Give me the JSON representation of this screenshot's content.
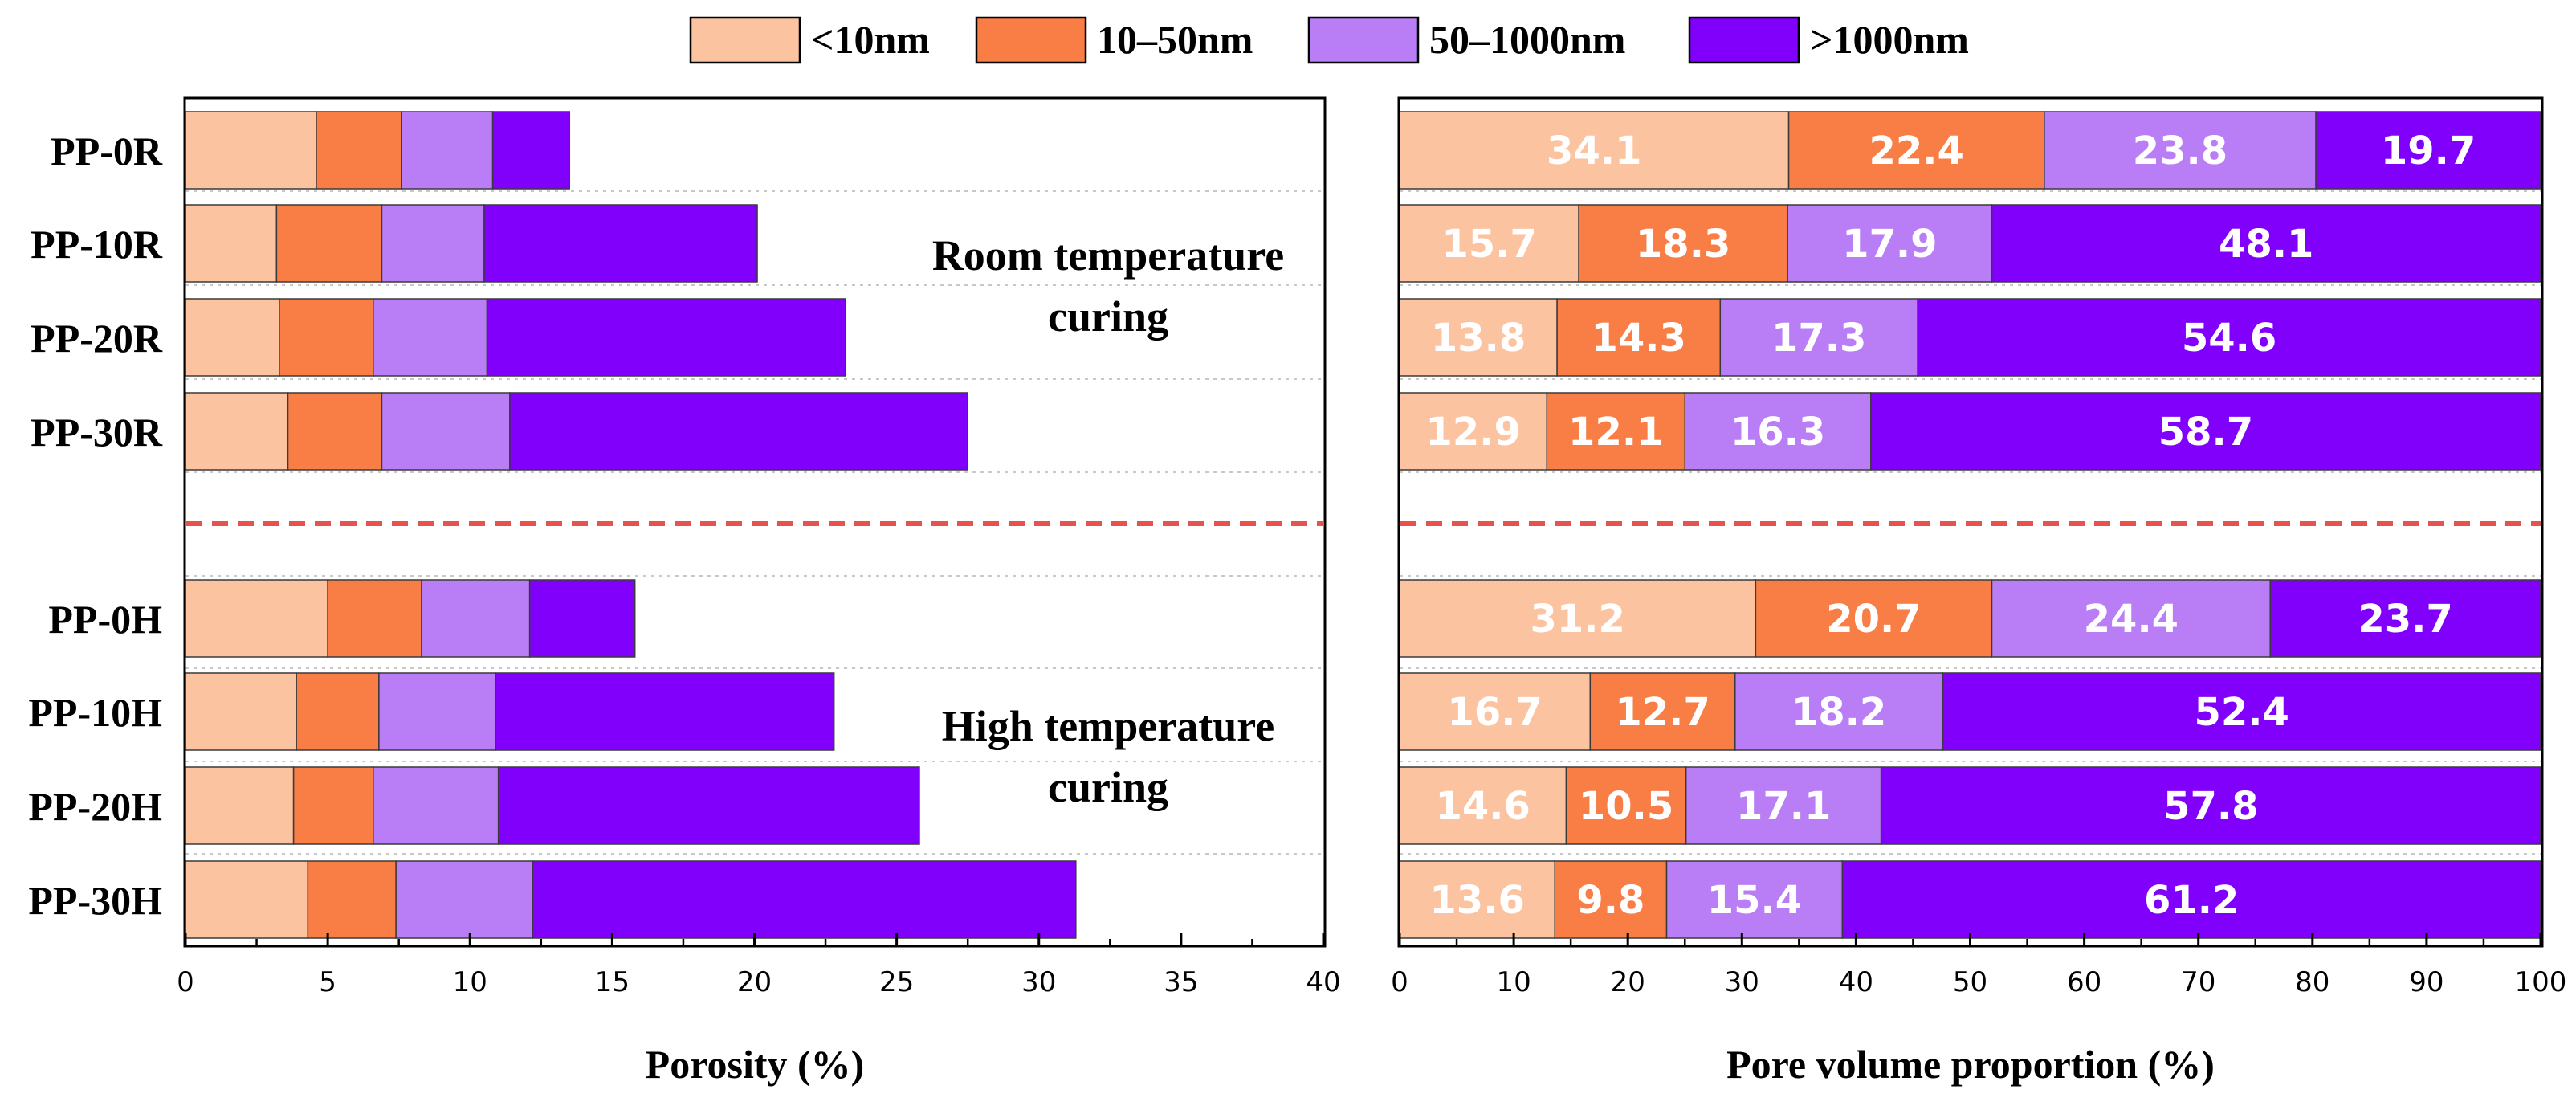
{
  "chart_data": {
    "legend": [
      "<10nm",
      "10–50nm",
      "50–1000nm",
      ">1000nm"
    ],
    "colors": [
      "#FBC3A0",
      "#F97E46",
      "#B97DF5",
      "#8000FC"
    ],
    "categories_room": [
      "PP-0R",
      "PP-10R",
      "PP-20R",
      "PP-30R"
    ],
    "categories_high": [
      "PP-0H",
      "PP-10H",
      "PP-20H",
      "PP-30H"
    ],
    "annotations": {
      "room_line1": "Room temperature",
      "room_line2": "curing",
      "high_line1": "High temperature",
      "high_line2": "curing"
    },
    "charts": [
      {
        "type": "bar",
        "orientation": "horizontal",
        "stacked": true,
        "xlabel": "Porosity (%)",
        "xlim": [
          0,
          40
        ],
        "xticks": [
          0,
          5,
          10,
          15,
          20,
          25,
          30,
          35,
          40
        ],
        "series": [
          {
            "name": "<10nm",
            "values_room": [
              4.6,
              3.2,
              3.3,
              3.6
            ],
            "values_high": [
              5.0,
              3.9,
              3.8,
              4.3
            ]
          },
          {
            "name": "10–50nm",
            "values_room": [
              3.0,
              3.7,
              3.3,
              3.3
            ],
            "values_high": [
              3.3,
              2.9,
              2.8,
              3.1
            ]
          },
          {
            "name": "50–1000nm",
            "values_room": [
              3.2,
              3.6,
              4.0,
              4.5
            ],
            "values_high": [
              3.8,
              4.1,
              4.4,
              4.8
            ]
          },
          {
            "name": ">1000nm",
            "values_room": [
              2.7,
              9.6,
              12.6,
              16.1
            ],
            "values_high": [
              3.7,
              11.9,
              14.8,
              19.1
            ]
          }
        ]
      },
      {
        "type": "bar",
        "orientation": "horizontal",
        "stacked": true,
        "xlabel": "Pore volume proportion (%)",
        "xlim": [
          0,
          100
        ],
        "xticks": [
          0,
          10,
          20,
          30,
          40,
          50,
          60,
          70,
          80,
          90,
          100
        ],
        "data_labels": true,
        "series": [
          {
            "name": "<10nm",
            "values_room": [
              34.1,
              15.7,
              13.8,
              12.9
            ],
            "values_high": [
              31.2,
              16.7,
              14.6,
              13.6
            ]
          },
          {
            "name": "10–50nm",
            "values_room": [
              22.4,
              18.3,
              14.3,
              12.1
            ],
            "values_high": [
              20.7,
              12.7,
              10.5,
              9.8
            ]
          },
          {
            "name": "50–1000nm",
            "values_room": [
              23.8,
              17.9,
              17.3,
              16.3
            ],
            "values_high": [
              24.4,
              18.2,
              17.1,
              15.4
            ]
          },
          {
            "name": ">1000nm",
            "values_room": [
              19.7,
              48.1,
              54.6,
              58.7
            ],
            "values_high": [
              23.7,
              52.4,
              57.8,
              61.2
            ]
          }
        ]
      }
    ]
  }
}
